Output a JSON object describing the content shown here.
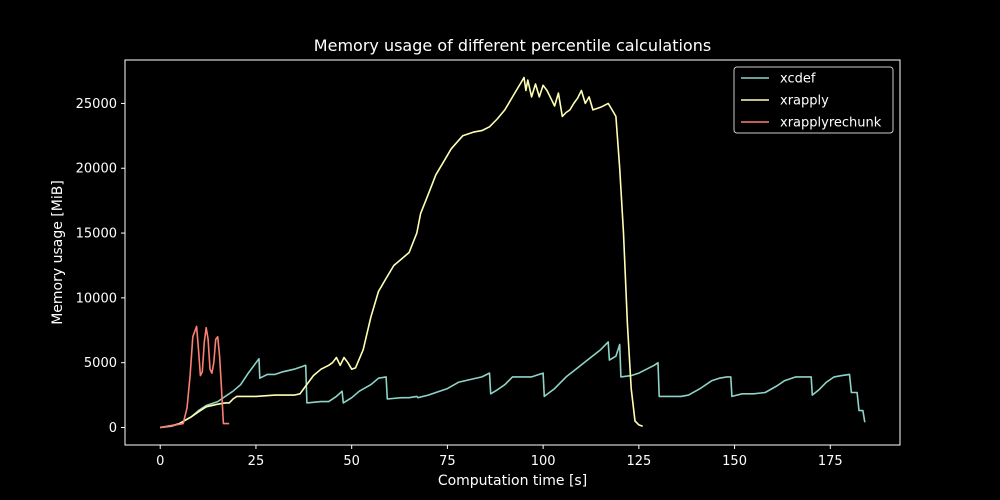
{
  "chart_data": {
    "type": "line",
    "title": "Memory usage of different percentile calculations",
    "xlabel": "Computation time [s]",
    "ylabel": "Memory usage [MiB]",
    "xlim": [
      -9.2,
      193.2
    ],
    "ylim": [
      -1350,
      28350
    ],
    "xticks": [
      0,
      25,
      50,
      75,
      100,
      125,
      150,
      175
    ],
    "yticks": [
      0,
      5000,
      10000,
      15000,
      20000,
      25000
    ],
    "grid": false,
    "legend_position": "top-right",
    "series": [
      {
        "name": "xcdef",
        "color": "#8dd3c7",
        "points": [
          [
            0,
            0
          ],
          [
            3,
            100
          ],
          [
            5,
            300
          ],
          [
            8,
            800
          ],
          [
            10,
            1300
          ],
          [
            12,
            1700
          ],
          [
            15,
            2000
          ],
          [
            17,
            2400
          ],
          [
            19,
            2800
          ],
          [
            21,
            3300
          ],
          [
            23,
            4200
          ],
          [
            25,
            5000
          ],
          [
            25.8,
            5300
          ],
          [
            26,
            3800
          ],
          [
            28,
            4100
          ],
          [
            30,
            4100
          ],
          [
            32,
            4300
          ],
          [
            35,
            4500
          ],
          [
            37,
            4700
          ],
          [
            38,
            4800
          ],
          [
            38.3,
            1900
          ],
          [
            42,
            2000
          ],
          [
            44,
            2000
          ],
          [
            46,
            2400
          ],
          [
            47.5,
            2800
          ],
          [
            47.8,
            1900
          ],
          [
            50,
            2300
          ],
          [
            52,
            2800
          ],
          [
            55,
            3300
          ],
          [
            57,
            3800
          ],
          [
            59,
            3900
          ],
          [
            59.3,
            2200
          ],
          [
            63,
            2300
          ],
          [
            65,
            2300
          ],
          [
            67,
            2400
          ],
          [
            67.3,
            2300
          ],
          [
            70,
            2500
          ],
          [
            72,
            2700
          ],
          [
            75,
            3000
          ],
          [
            78,
            3500
          ],
          [
            81,
            3700
          ],
          [
            84,
            3900
          ],
          [
            86,
            4200
          ],
          [
            86.3,
            2600
          ],
          [
            88,
            2900
          ],
          [
            90,
            3300
          ],
          [
            92,
            3900
          ],
          [
            95,
            3900
          ],
          [
            97,
            3900
          ],
          [
            98,
            4000
          ],
          [
            100,
            4200
          ],
          [
            100.3,
            2400
          ],
          [
            103,
            3000
          ],
          [
            106,
            3900
          ],
          [
            109,
            4600
          ],
          [
            112,
            5300
          ],
          [
            115,
            6000
          ],
          [
            117,
            6600
          ],
          [
            117.3,
            5200
          ],
          [
            119,
            5500
          ],
          [
            120,
            6400
          ],
          [
            120.3,
            3900
          ],
          [
            123,
            4000
          ],
          [
            125,
            4200
          ],
          [
            127,
            4500
          ],
          [
            129,
            4800
          ],
          [
            130,
            5000
          ],
          [
            130.3,
            2400
          ],
          [
            133,
            2400
          ],
          [
            136,
            2400
          ],
          [
            138,
            2500
          ],
          [
            141,
            3000
          ],
          [
            144,
            3600
          ],
          [
            146,
            3800
          ],
          [
            148,
            3900
          ],
          [
            149,
            3900
          ],
          [
            149.3,
            2400
          ],
          [
            152,
            2600
          ],
          [
            155,
            2600
          ],
          [
            158,
            2700
          ],
          [
            161,
            3200
          ],
          [
            163,
            3600
          ],
          [
            166,
            3900
          ],
          [
            168,
            3900
          ],
          [
            170,
            3900
          ],
          [
            170.3,
            2500
          ],
          [
            172,
            2900
          ],
          [
            174,
            3500
          ],
          [
            176,
            3900
          ],
          [
            178,
            4000
          ],
          [
            180,
            4100
          ],
          [
            180.5,
            2700
          ],
          [
            182,
            2700
          ],
          [
            182.5,
            1300
          ],
          [
            183.5,
            1300
          ],
          [
            184,
            400
          ]
        ]
      },
      {
        "name": "xrapply",
        "color": "#ffffb3",
        "points": [
          [
            0,
            0
          ],
          [
            3,
            150
          ],
          [
            5,
            300
          ],
          [
            8,
            800
          ],
          [
            10,
            1200
          ],
          [
            12,
            1600
          ],
          [
            15,
            1800
          ],
          [
            17,
            1900
          ],
          [
            18,
            1900
          ],
          [
            19,
            2200
          ],
          [
            20,
            2400
          ],
          [
            25,
            2400
          ],
          [
            30,
            2500
          ],
          [
            35,
            2500
          ],
          [
            36.5,
            2600
          ],
          [
            38,
            3200
          ],
          [
            40,
            4000
          ],
          [
            42,
            4500
          ],
          [
            44,
            4800
          ],
          [
            45,
            5000
          ],
          [
            46,
            5400
          ],
          [
            47,
            4800
          ],
          [
            48,
            5400
          ],
          [
            49,
            5000
          ],
          [
            50,
            4500
          ],
          [
            51,
            4600
          ],
          [
            53,
            6000
          ],
          [
            55,
            8500
          ],
          [
            57,
            10500
          ],
          [
            59,
            11500
          ],
          [
            61,
            12500
          ],
          [
            63,
            13000
          ],
          [
            65,
            13500
          ],
          [
            67,
            15000
          ],
          [
            68,
            16500
          ],
          [
            70,
            18000
          ],
          [
            72,
            19500
          ],
          [
            74,
            20500
          ],
          [
            76,
            21500
          ],
          [
            79,
            22500
          ],
          [
            82,
            22800
          ],
          [
            84,
            22900
          ],
          [
            86,
            23200
          ],
          [
            88,
            23800
          ],
          [
            90,
            24500
          ],
          [
            92,
            25500
          ],
          [
            94,
            26500
          ],
          [
            95,
            27000
          ],
          [
            95.5,
            26000
          ],
          [
            96,
            26800
          ],
          [
            97,
            25500
          ],
          [
            98,
            26500
          ],
          [
            99,
            25500
          ],
          [
            100,
            26400
          ],
          [
            101,
            26000
          ],
          [
            102,
            25400
          ],
          [
            103,
            24800
          ],
          [
            104,
            25800
          ],
          [
            105,
            24000
          ],
          [
            106,
            24300
          ],
          [
            107,
            24500
          ],
          [
            108,
            25000
          ],
          [
            109,
            25400
          ],
          [
            110,
            26000
          ],
          [
            111,
            25000
          ],
          [
            112,
            25500
          ],
          [
            113,
            24500
          ],
          [
            115,
            24700
          ],
          [
            117,
            25000
          ],
          [
            118,
            24500
          ],
          [
            119,
            24000
          ],
          [
            120,
            20000
          ],
          [
            121,
            15000
          ],
          [
            122,
            8000
          ],
          [
            123,
            3000
          ],
          [
            124,
            500
          ],
          [
            125,
            200
          ],
          [
            126,
            100
          ]
        ]
      },
      {
        "name": "xrapplyrechunk",
        "color": "#fb8072",
        "points": [
          [
            0,
            0
          ],
          [
            2,
            100
          ],
          [
            4,
            200
          ],
          [
            6,
            300
          ],
          [
            7,
            1500
          ],
          [
            7.8,
            4000
          ],
          [
            8.5,
            7000
          ],
          [
            9,
            7400
          ],
          [
            9.5,
            7800
          ],
          [
            10,
            6000
          ],
          [
            10.5,
            4000
          ],
          [
            11,
            4300
          ],
          [
            11.5,
            6600
          ],
          [
            12,
            7700
          ],
          [
            12.5,
            6800
          ],
          [
            13,
            4500
          ],
          [
            13.5,
            4200
          ],
          [
            14,
            5000
          ],
          [
            14.5,
            6800
          ],
          [
            15,
            7000
          ],
          [
            15.5,
            5500
          ],
          [
            16,
            3000
          ],
          [
            16.5,
            300
          ],
          [
            17,
            300
          ],
          [
            18,
            300
          ]
        ]
      }
    ]
  }
}
